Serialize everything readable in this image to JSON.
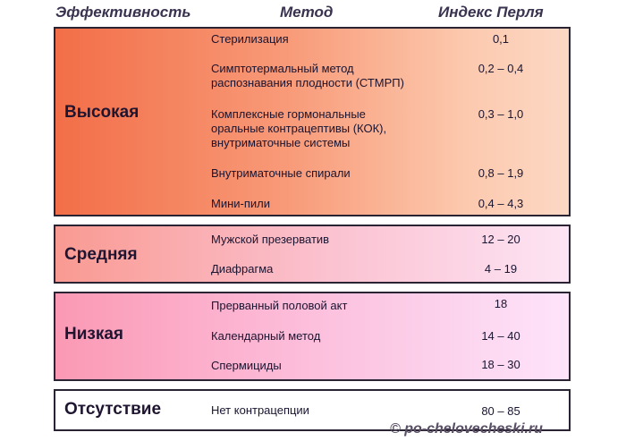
{
  "headers": {
    "effectiveness": "Эффективность",
    "method": "Метод",
    "pearl_index": "Индекс Перля"
  },
  "groups": [
    {
      "level": "Высокая",
      "rows": [
        {
          "method": "Стерилизация",
          "index": "0,1"
        },
        {
          "method": "Симптотермальный метод распознавания плодности (СТМРП)",
          "index": "0,2 – 0,4"
        },
        {
          "method": "Комплексные гормональные оральные контрацептивы (КОК), внутриматочные системы",
          "index": "0,3 – 1,0"
        },
        {
          "method": "Внутриматочные спирали",
          "index": "0,8 – 1,9"
        },
        {
          "method": "Мини-пили",
          "index": "0,4 – 4,3"
        }
      ]
    },
    {
      "level": "Средняя",
      "rows": [
        {
          "method": "Мужской презерватив",
          "index": "12 – 20"
        },
        {
          "method": "Диафрагма",
          "index": "4 – 19"
        }
      ]
    },
    {
      "level": "Низкая",
      "rows": [
        {
          "method": "Прерванный половой акт",
          "index": "18"
        },
        {
          "method": "Календарный метод",
          "index": "14 – 40"
        },
        {
          "method": "Спермициды",
          "index": "18 – 30"
        }
      ]
    },
    {
      "level": "Отсутствие",
      "rows": [
        {
          "method": "Нет контрацепции",
          "index": "80 – 85"
        }
      ]
    }
  ],
  "copyright": "© po-chelovecheski.ru"
}
